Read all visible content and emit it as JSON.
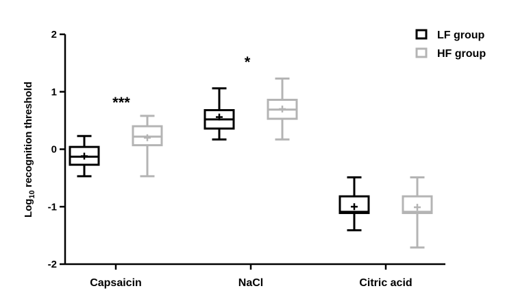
{
  "chart_data": {
    "type": "boxplot",
    "title": "",
    "xlabel": "",
    "ylabel": {
      "prefix": "Log",
      "subscript": "10",
      "suffix": " recognition threshold"
    },
    "ylim": [
      -2,
      2
    ],
    "yticks": [
      -2,
      -1,
      0,
      1,
      2
    ],
    "ytick_labels": [
      "-2",
      "-1",
      "0",
      "1",
      "2"
    ],
    "categories": [
      "Capsaicin",
      "NaCl",
      "Citric acid"
    ],
    "series": [
      {
        "name": "LF group",
        "color": "#000000",
        "boxes": [
          {
            "min": -0.47,
            "q1": -0.27,
            "median": -0.13,
            "q3": 0.04,
            "max": 0.23,
            "mean": -0.12
          },
          {
            "min": 0.17,
            "q1": 0.36,
            "median": 0.52,
            "q3": 0.68,
            "max": 1.06,
            "mean": 0.56
          },
          {
            "min": -1.41,
            "q1": -1.11,
            "median": -1.09,
            "q3": -0.82,
            "max": -0.49,
            "mean": -1.0
          }
        ]
      },
      {
        "name": "HF group",
        "color": "#b4b4b4",
        "boxes": [
          {
            "min": -0.47,
            "q1": 0.07,
            "median": 0.22,
            "q3": 0.4,
            "max": 0.58,
            "mean": 0.2
          },
          {
            "min": 0.17,
            "q1": 0.53,
            "median": 0.69,
            "q3": 0.86,
            "max": 1.23,
            "mean": 0.7
          },
          {
            "min": -1.71,
            "q1": -1.11,
            "median": -1.09,
            "q3": -0.82,
            "max": -0.49,
            "mean": -1.01
          }
        ]
      }
    ],
    "annotations": [
      {
        "category": "Capsaicin",
        "text": "***"
      },
      {
        "category": "NaCl",
        "text": "*"
      }
    ],
    "legend_position": "top-right"
  }
}
